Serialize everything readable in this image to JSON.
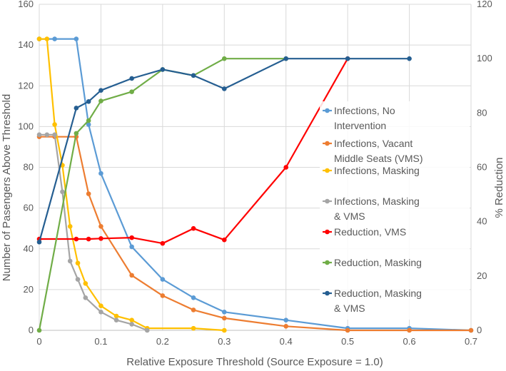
{
  "chart_data": {
    "type": "line",
    "title": "",
    "xlabel": "Relative Exposure Threshold (Source Exposure = 1.0)",
    "ylabel": "Number of Pasengers Above Threshold",
    "y2label": "% Reduction",
    "xlim": [
      0,
      0.7
    ],
    "ylim": [
      0,
      160
    ],
    "y2lim": [
      0,
      120
    ],
    "x_ticks": [
      "0",
      "0.1",
      "0.2",
      "0.3",
      "0.4",
      "0.5",
      "0.6",
      "0.7"
    ],
    "y_ticks": [
      "0",
      "20",
      "40",
      "60",
      "80",
      "100",
      "120",
      "140",
      "160"
    ],
    "y2_ticks": [
      "0",
      "20",
      "40",
      "60",
      "80",
      "100",
      "120"
    ],
    "grid": true,
    "legend_position": "right",
    "series": [
      {
        "name": "Infections, No Intervention",
        "legend_lines": [
          "Infections, No",
          "Intervention"
        ],
        "axis": "left",
        "color": "#5B9BD5",
        "x": [
          0,
          0.025,
          0.06,
          0.08,
          0.1,
          0.15,
          0.2,
          0.25,
          0.3,
          0.4,
          0.5,
          0.6,
          0.7
        ],
        "y": [
          143,
          143,
          143,
          101,
          77,
          41,
          25,
          16,
          9,
          5,
          1,
          1,
          0
        ]
      },
      {
        "name": "Infections, Vacant Middle Seats (VMS)",
        "legend_lines": [
          "Infections, Vacant",
          "Middle Seats (VMS)"
        ],
        "axis": "left",
        "color": "#ED7D31",
        "x": [
          0,
          0.025,
          0.06,
          0.08,
          0.1,
          0.15,
          0.2,
          0.25,
          0.3,
          0.4,
          0.5,
          0.6,
          0.7
        ],
        "y": [
          95,
          95,
          95,
          67,
          51,
          27,
          17,
          10,
          6,
          2,
          0,
          0,
          0
        ]
      },
      {
        "name": "Infections, Masking",
        "legend_lines": [
          "Infections, Masking"
        ],
        "axis": "left",
        "color": "#FFC000",
        "x": [
          0,
          0.0125,
          0.025,
          0.0375,
          0.05,
          0.0625,
          0.075,
          0.1,
          0.125,
          0.15,
          0.175,
          0.25,
          0.3
        ],
        "y": [
          143,
          143,
          101,
          81,
          51,
          33,
          23,
          12,
          7,
          5,
          1,
          1,
          0
        ]
      },
      {
        "name": "Infections, Masking & VMS",
        "legend_lines": [
          "Infections, Masking",
          "& VMS"
        ],
        "axis": "left",
        "color": "#A5A5A5",
        "x": [
          0,
          0.0125,
          0.025,
          0.0375,
          0.05,
          0.0625,
          0.075,
          0.1,
          0.125,
          0.15,
          0.175
        ],
        "y": [
          96,
          96,
          96,
          68,
          34,
          25,
          16,
          9,
          5,
          3,
          0
        ]
      },
      {
        "name": "Reduction, VMS",
        "legend_lines": [
          "Reduction, VMS"
        ],
        "axis": "right",
        "color": "#FF0000",
        "x": [
          0,
          0.06,
          0.08,
          0.1,
          0.15,
          0.2,
          0.25,
          0.3,
          0.4,
          0.5
        ],
        "y": [
          33.6,
          33.6,
          33.6,
          33.8,
          34.1,
          32,
          37.5,
          33.3,
          60,
          100
        ]
      },
      {
        "name": "Reduction, Masking",
        "legend_lines": [
          "Reduction, Masking"
        ],
        "axis": "right",
        "color": "#70AD47",
        "x": [
          0,
          0.06,
          0.08,
          0.1,
          0.15,
          0.2,
          0.25,
          0.3,
          0.4
        ],
        "y": [
          0,
          72.5,
          77.2,
          84.4,
          87.8,
          96,
          93.8,
          100,
          100
        ]
      },
      {
        "name": "Reduction, Masking & VMS",
        "legend_lines": [
          "Reduction, Masking",
          "& VMS"
        ],
        "axis": "right",
        "color": "#255E91",
        "x": [
          0,
          0.06,
          0.08,
          0.1,
          0.15,
          0.2,
          0.25,
          0.3,
          0.4,
          0.5,
          0.6
        ],
        "y": [
          32.5,
          81.8,
          84.2,
          88.3,
          92.7,
          96,
          93.8,
          88.9,
          100,
          100,
          100
        ]
      }
    ]
  }
}
